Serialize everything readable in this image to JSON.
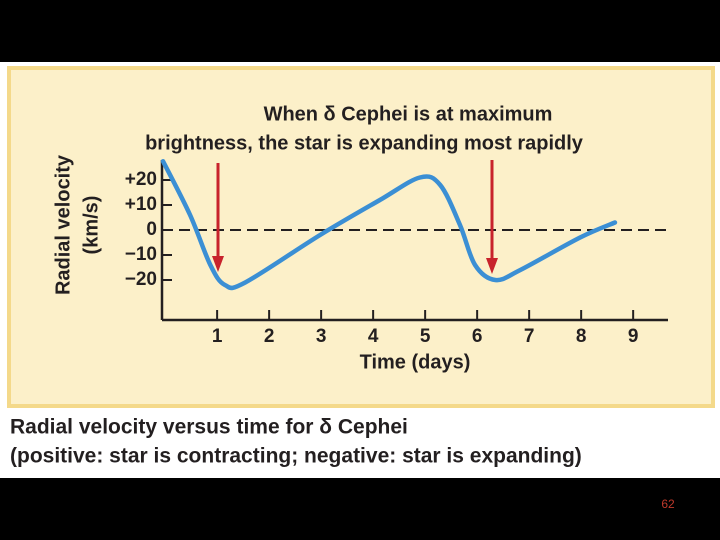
{
  "chart_data": {
    "type": "line",
    "title_lines": [
      "When δ Cephei is at maximum",
      "brightness, the star is expanding most rapidly"
    ],
    "ylabel_lines": [
      "Radial velocity",
      "(km/s)"
    ],
    "xlabel": "Time (days)",
    "x": [
      -0.04,
      0.48,
      0.87,
      1.15,
      1.54,
      2.98,
      4.13,
      4.9,
      5.29,
      5.67,
      5.96,
      6.35,
      6.83,
      7.98,
      8.65
    ],
    "values": [
      27.5,
      6,
      -14,
      -22,
      -21,
      -2,
      12,
      21,
      18,
      2,
      -14,
      -20,
      -16,
      -3,
      3
    ],
    "color": "#3b8fd4",
    "xlim": [
      -0.06,
      9.67
    ],
    "xticks": [
      1,
      2,
      3,
      4,
      5,
      6,
      7,
      8,
      9
    ],
    "ylim": [
      -36,
      28
    ],
    "yticks": [
      {
        "value": 20,
        "label": "+20"
      },
      {
        "value": 10,
        "label": "+10"
      },
      0,
      {
        "value": -10,
        "label": "−10"
      },
      {
        "value": -20,
        "label": "−20"
      }
    ]
  },
  "caption": [
    "Radial velocity versus time for δ Cephei",
    "(positive: star is contracting; negative: star is expanding)"
  ],
  "page_number": "62"
}
